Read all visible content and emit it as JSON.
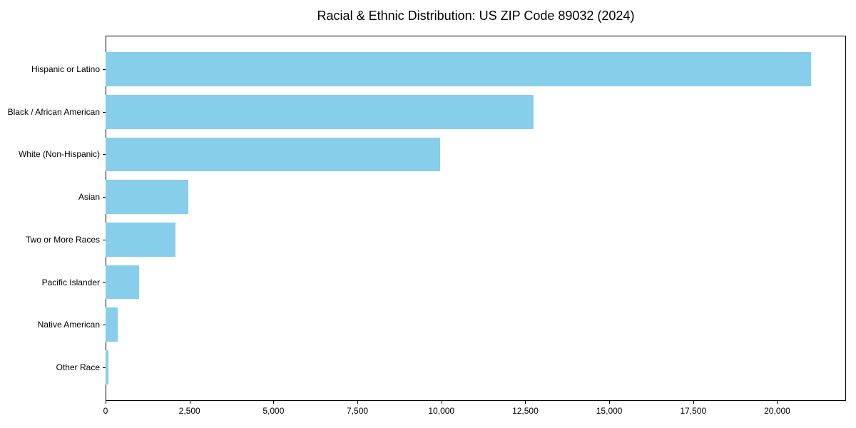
{
  "chart_data": {
    "type": "bar",
    "orientation": "horizontal",
    "title": "Racial & Ethnic Distribution: US ZIP Code 89032 (2024)",
    "categories": [
      "Hispanic or Latino",
      "Black / African American",
      "White (Non-Hispanic)",
      "Asian",
      "Two or More Races",
      "Pacific Islander",
      "Native American",
      "Other Race"
    ],
    "values": [
      21000,
      12750,
      9960,
      2470,
      2080,
      1000,
      360,
      85
    ],
    "bar_color": "#87CEEB",
    "xlim": [
      0,
      22050
    ],
    "x_ticks": [
      0,
      2500,
      5000,
      7500,
      10000,
      12500,
      15000,
      17500,
      20000
    ],
    "x_tick_labels": [
      "0",
      "2,500",
      "5,000",
      "7,500",
      "10,000",
      "12,500",
      "15,000",
      "17,500",
      "20,000"
    ],
    "xlabel": "",
    "ylabel": "",
    "grid": false,
    "legend": null,
    "background_color": "#FFFFFF",
    "spine_color": "#000000",
    "text_color": "#000000"
  }
}
